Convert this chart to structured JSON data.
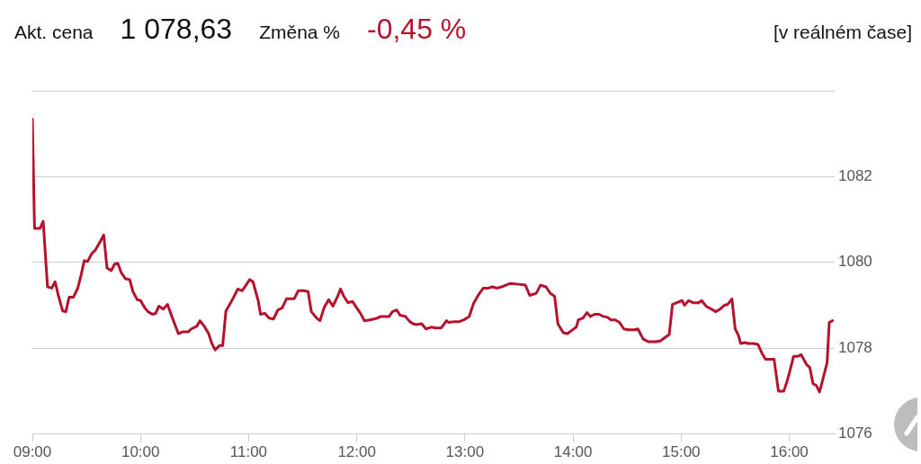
{
  "chart_data": {
    "type": "line",
    "annotations": [
      "Akt. cena",
      "1 078,63",
      "Změna %",
      "-0,45 %",
      "[v reálném čase]"
    ],
    "x": [
      9.0,
      9.02,
      9.07,
      9.1,
      9.14,
      9.18,
      9.21,
      9.24,
      9.28,
      9.31,
      9.34,
      9.38,
      9.42,
      9.45,
      9.48,
      9.51,
      9.55,
      9.58,
      9.62,
      9.66,
      9.69,
      9.73,
      9.76,
      9.79,
      9.82,
      9.86,
      9.9,
      9.93,
      9.97,
      10.0,
      10.04,
      10.07,
      10.11,
      10.14,
      10.17,
      10.21,
      10.25,
      10.29,
      10.35,
      10.39,
      10.44,
      10.47,
      10.52,
      10.55,
      10.59,
      10.63,
      10.66,
      10.69,
      10.73,
      10.76,
      10.79,
      10.83,
      10.87,
      10.9,
      10.94,
      10.97,
      11.01,
      11.04,
      11.09,
      11.11,
      11.15,
      11.19,
      11.23,
      11.27,
      11.31,
      11.35,
      11.39,
      11.42,
      11.46,
      11.51,
      11.55,
      11.58,
      11.63,
      11.66,
      11.7,
      11.74,
      11.78,
      11.82,
      11.85,
      11.88,
      11.92,
      11.96,
      12.0,
      12.04,
      12.07,
      12.12,
      12.16,
      12.19,
      12.22,
      12.3,
      12.33,
      12.37,
      12.4,
      12.45,
      12.49,
      12.52,
      12.55,
      12.6,
      12.64,
      12.69,
      12.73,
      12.78,
      12.83,
      12.85,
      12.91,
      12.95,
      12.99,
      13.04,
      13.08,
      13.13,
      13.17,
      13.22,
      13.25,
      13.3,
      13.34,
      13.38,
      13.42,
      13.5,
      13.56,
      13.6,
      13.66,
      13.7,
      13.75,
      13.79,
      13.83,
      13.86,
      13.91,
      13.95,
      13.98,
      14.03,
      14.05,
      14.09,
      14.13,
      14.16,
      14.2,
      14.24,
      14.28,
      14.32,
      14.35,
      14.39,
      14.43,
      14.47,
      14.51,
      14.57,
      14.6,
      14.65,
      14.7,
      14.77,
      14.81,
      14.84,
      14.89,
      14.92,
      14.96,
      15.01,
      15.03,
      15.07,
      15.11,
      15.16,
      15.19,
      15.23,
      15.28,
      15.32,
      15.36,
      15.4,
      15.43,
      15.47,
      15.5,
      15.53,
      15.55,
      15.59,
      15.62,
      15.67,
      15.71,
      15.75,
      15.78,
      15.82,
      15.86,
      15.9,
      15.95,
      15.98,
      16.01,
      16.04,
      16.08,
      16.11,
      16.16,
      16.19,
      16.22,
      16.25,
      16.28,
      16.3,
      16.35,
      16.37,
      16.4
    ],
    "series": [
      {
        "color": "#b5122e",
        "values": [
          1083.34,
          1080.79,
          1080.79,
          1080.96,
          1079.43,
          1079.4,
          1079.55,
          1079.23,
          1078.87,
          1078.85,
          1079.19,
          1079.19,
          1079.4,
          1079.7,
          1080.04,
          1080.02,
          1080.21,
          1080.28,
          1080.45,
          1080.64,
          1079.87,
          1079.81,
          1079.96,
          1079.98,
          1079.77,
          1079.62,
          1079.6,
          1079.32,
          1079.13,
          1079.11,
          1078.94,
          1078.85,
          1078.79,
          1078.81,
          1078.98,
          1078.91,
          1079.02,
          1078.74,
          1078.34,
          1078.38,
          1078.38,
          1078.45,
          1078.51,
          1078.64,
          1078.51,
          1078.34,
          1078.11,
          1077.96,
          1078.06,
          1078.06,
          1078.87,
          1079.04,
          1079.23,
          1079.38,
          1079.34,
          1079.45,
          1079.6,
          1079.55,
          1079.09,
          1078.79,
          1078.81,
          1078.7,
          1078.68,
          1078.89,
          1078.94,
          1079.15,
          1079.15,
          1079.15,
          1079.34,
          1079.34,
          1079.32,
          1078.85,
          1078.7,
          1078.64,
          1078.96,
          1079.13,
          1078.98,
          1079.19,
          1079.38,
          1079.21,
          1079.06,
          1079.09,
          1078.94,
          1078.79,
          1078.64,
          1078.66,
          1078.68,
          1078.7,
          1078.74,
          1078.74,
          1078.85,
          1078.89,
          1078.77,
          1078.74,
          1078.62,
          1078.57,
          1078.55,
          1078.57,
          1078.45,
          1078.49,
          1078.47,
          1078.47,
          1078.64,
          1078.6,
          1078.62,
          1078.62,
          1078.66,
          1078.74,
          1079.04,
          1079.26,
          1079.4,
          1079.4,
          1079.43,
          1079.4,
          1079.43,
          1079.47,
          1079.51,
          1079.49,
          1079.47,
          1079.23,
          1079.28,
          1079.47,
          1079.43,
          1079.28,
          1079.21,
          1078.57,
          1078.36,
          1078.34,
          1078.4,
          1078.49,
          1078.66,
          1078.7,
          1078.83,
          1078.74,
          1078.79,
          1078.79,
          1078.74,
          1078.72,
          1078.66,
          1078.66,
          1078.6,
          1078.45,
          1078.43,
          1078.43,
          1078.45,
          1078.21,
          1078.15,
          1078.15,
          1078.17,
          1078.23,
          1078.32,
          1079.02,
          1079.06,
          1079.11,
          1079.0,
          1079.11,
          1079.06,
          1079.06,
          1079.11,
          1078.98,
          1078.91,
          1078.85,
          1078.91,
          1079.0,
          1079.02,
          1079.15,
          1078.45,
          1078.3,
          1078.11,
          1078.13,
          1078.11,
          1078.11,
          1078.09,
          1077.87,
          1077.74,
          1077.74,
          1077.74,
          1077.0,
          1077.0,
          1077.23,
          1077.51,
          1077.81,
          1077.81,
          1077.85,
          1077.62,
          1077.55,
          1077.17,
          1077.13,
          1076.98,
          1077.17,
          1077.66,
          1078.6,
          1078.64
        ]
      }
    ],
    "xlim": [
      9,
      16.42
    ],
    "xticks": [
      {
        "value": 9,
        "label": "09:00"
      },
      {
        "value": 10,
        "label": "10:00"
      },
      {
        "value": 11,
        "label": "11:00"
      },
      {
        "value": 12,
        "label": "12:00"
      },
      {
        "value": 13,
        "label": "13:00"
      },
      {
        "value": 14,
        "label": "14:00"
      },
      {
        "value": 15,
        "label": "15:00"
      },
      {
        "value": 16,
        "label": "16:00"
      }
    ],
    "ylim": [
      1076,
      1084
    ],
    "yticks": [
      1076,
      1078,
      1080,
      1082,
      {
        "value": 1084,
        "label": null
      }
    ],
    "grid": "y",
    "marker": "none",
    "line_style": "solid"
  }
}
